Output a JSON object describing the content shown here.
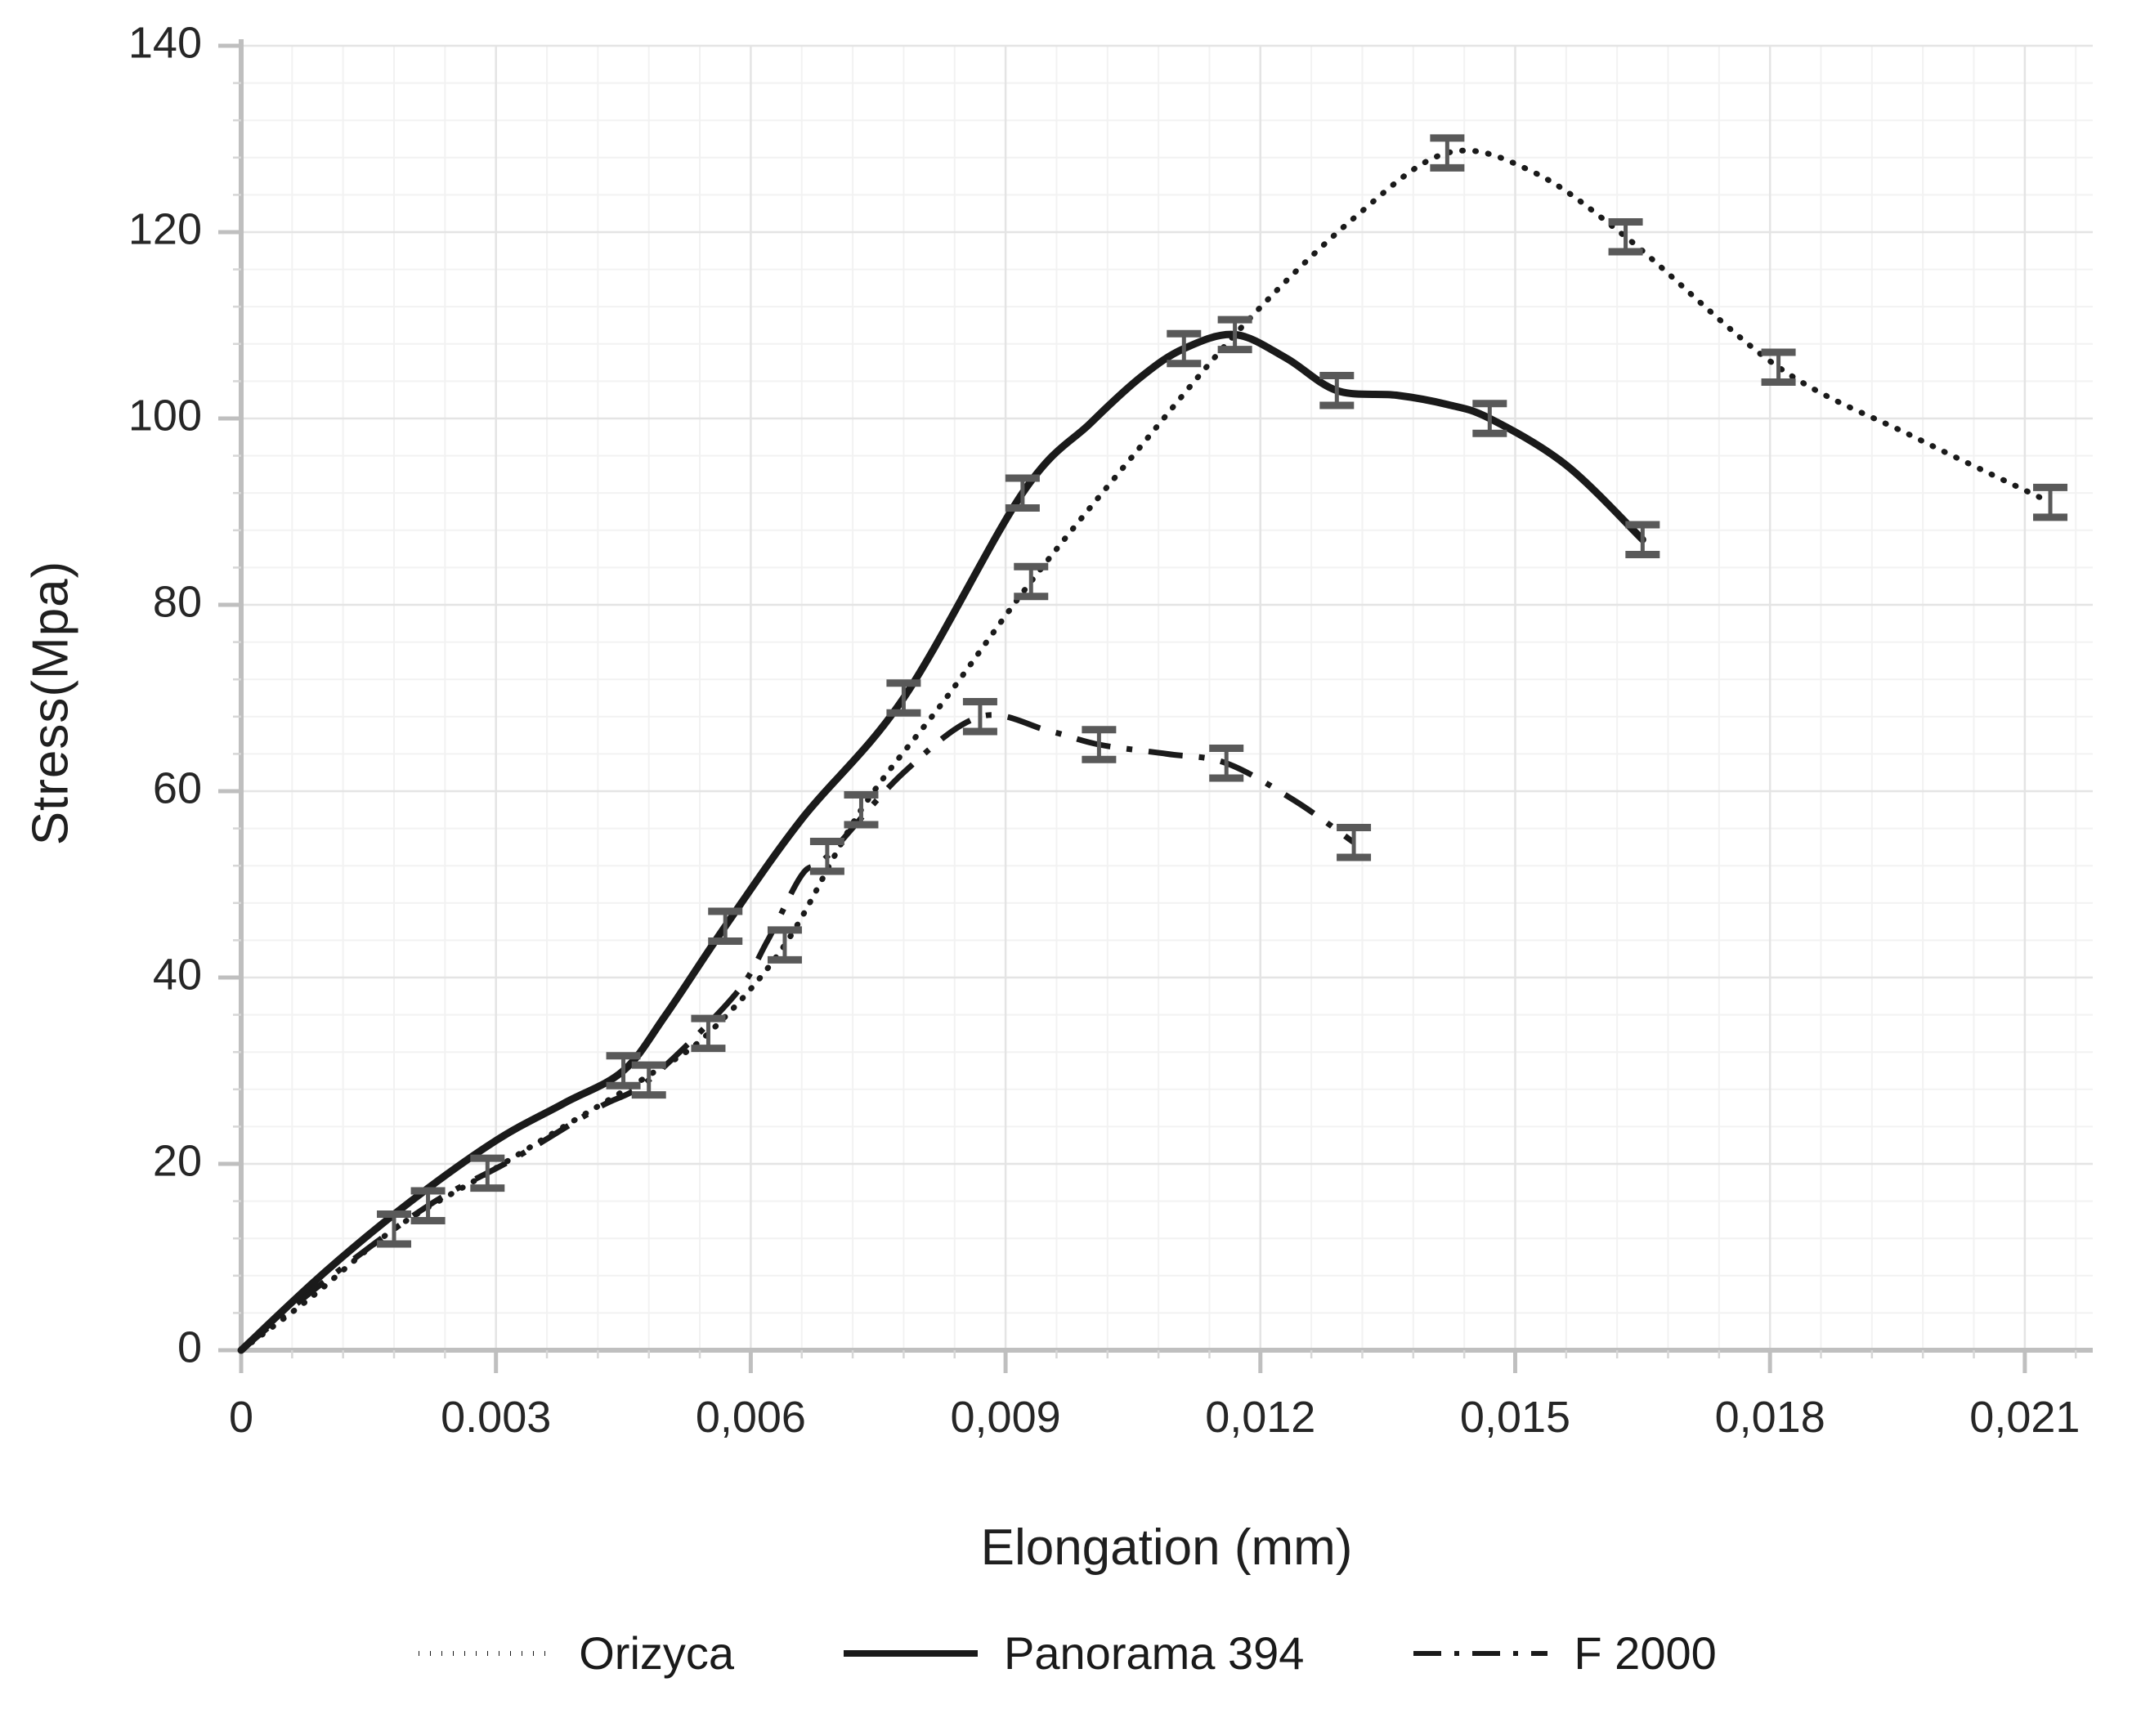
{
  "chart_data": {
    "type": "line",
    "title": "",
    "xlabel": "Elongation (mm)",
    "ylabel": "Stress(Mpa)",
    "xlim": [
      0,
      0.0218
    ],
    "ylim": [
      0,
      140
    ],
    "grid": true,
    "legend_position": "bottom-center",
    "axis_color": "#bfbfbf",
    "grid_major_color": "#e4e4e4",
    "grid_minor_color": "#f2f2f2",
    "tick_label_color": "#262626",
    "error_bar_color": "#595959",
    "error_bar_halfheight": 1.6,
    "x_minor_step": 0.0006,
    "y_minor_step": 4,
    "x_ticks": [
      {
        "v": 0,
        "label": "0"
      },
      {
        "v": 0.003,
        "label": "0.003"
      },
      {
        "v": 0.006,
        "label": "0,006"
      },
      {
        "v": 0.009,
        "label": "0,009"
      },
      {
        "v": 0.012,
        "label": "0,012"
      },
      {
        "v": 0.015,
        "label": "0,015"
      },
      {
        "v": 0.018,
        "label": "0,018"
      },
      {
        "v": 0.021,
        "label": "0,021"
      }
    ],
    "y_ticks": [
      {
        "v": 0,
        "label": "0"
      },
      {
        "v": 20,
        "label": "20"
      },
      {
        "v": 40,
        "label": "40"
      },
      {
        "v": 60,
        "label": "60"
      },
      {
        "v": 80,
        "label": "80"
      },
      {
        "v": 100,
        "label": "100"
      },
      {
        "v": 120,
        "label": "120"
      },
      {
        "v": 140,
        "label": "140"
      }
    ],
    "series": [
      {
        "name": "Orizyca",
        "style": "dotted",
        "color": "#1a1a1a",
        "points": [
          [
            0,
            0
          ],
          [
            0.0008,
            5.5
          ],
          [
            0.0018,
            13
          ],
          [
            0.0029,
            19
          ],
          [
            0.0038,
            24
          ],
          [
            0.0048,
            29.5
          ],
          [
            0.0055,
            34
          ],
          [
            0.0064,
            43.5
          ],
          [
            0.0073,
            58
          ],
          [
            0.0083,
            70
          ],
          [
            0.0093,
            82.5
          ],
          [
            0.0105,
            96
          ],
          [
            0.0118,
            110
          ],
          [
            0.0131,
            121.5
          ],
          [
            0.0142,
            128.5
          ],
          [
            0.0152,
            126.5
          ],
          [
            0.0163,
            119.5
          ],
          [
            0.0181,
            105.5
          ],
          [
            0.0197,
            98
          ],
          [
            0.0213,
            91
          ]
        ],
        "error_points": [
          [
            0.0018,
            13
          ],
          [
            0.0029,
            19
          ],
          [
            0.0055,
            34
          ],
          [
            0.0064,
            43.5
          ],
          [
            0.0073,
            58
          ],
          [
            0.0093,
            82.5
          ],
          [
            0.0142,
            128.5
          ],
          [
            0.0163,
            119.5
          ],
          [
            0.0181,
            105.5
          ],
          [
            0.0213,
            91
          ]
        ]
      },
      {
        "name": "Panorama 394",
        "style": "solid",
        "color": "#1a1a1a",
        "points": [
          [
            0,
            0
          ],
          [
            0.001,
            8.5
          ],
          [
            0.002,
            16
          ],
          [
            0.003,
            22.5
          ],
          [
            0.0038,
            26.5
          ],
          [
            0.0045,
            30
          ],
          [
            0.005,
            36
          ],
          [
            0.0057,
            45.5
          ],
          [
            0.0066,
            57
          ],
          [
            0.0078,
            70
          ],
          [
            0.0092,
            92
          ],
          [
            0.01,
            99.5
          ],
          [
            0.0106,
            104.5
          ],
          [
            0.0111,
            107.5
          ],
          [
            0.0117,
            109
          ],
          [
            0.0123,
            106.5
          ],
          [
            0.0129,
            103
          ],
          [
            0.0136,
            102.5
          ],
          [
            0.0142,
            101.5
          ],
          [
            0.0147,
            100
          ],
          [
            0.0156,
            95
          ],
          [
            0.0165,
            87
          ]
        ],
        "error_points": [
          [
            0.0045,
            30
          ],
          [
            0.0057,
            45.5
          ],
          [
            0.0078,
            70
          ],
          [
            0.0092,
            92
          ],
          [
            0.0111,
            107.5
          ],
          [
            0.0117,
            109
          ],
          [
            0.0129,
            103
          ],
          [
            0.0147,
            100
          ],
          [
            0.0165,
            87
          ]
        ]
      },
      {
        "name": "F 2000",
        "style": "dashdot",
        "color": "#1a1a1a",
        "points": [
          [
            0,
            0
          ],
          [
            0.001,
            7.5
          ],
          [
            0.0022,
            15.5
          ],
          [
            0.0032,
            20.5
          ],
          [
            0.0042,
            26
          ],
          [
            0.0048,
            29
          ],
          [
            0.0058,
            38
          ],
          [
            0.0062,
            44
          ],
          [
            0.0066,
            51
          ],
          [
            0.0069,
            53
          ],
          [
            0.0078,
            62
          ],
          [
            0.0087,
            68
          ],
          [
            0.0095,
            66.5
          ],
          [
            0.0101,
            65
          ],
          [
            0.0109,
            64
          ],
          [
            0.0116,
            63
          ],
          [
            0.0124,
            59
          ],
          [
            0.0131,
            54.5
          ]
        ],
        "error_points": [
          [
            0.0022,
            15.5
          ],
          [
            0.0048,
            29
          ],
          [
            0.0069,
            53
          ],
          [
            0.0087,
            68
          ],
          [
            0.0101,
            65
          ],
          [
            0.0116,
            63
          ],
          [
            0.0131,
            54.5
          ]
        ]
      }
    ]
  }
}
